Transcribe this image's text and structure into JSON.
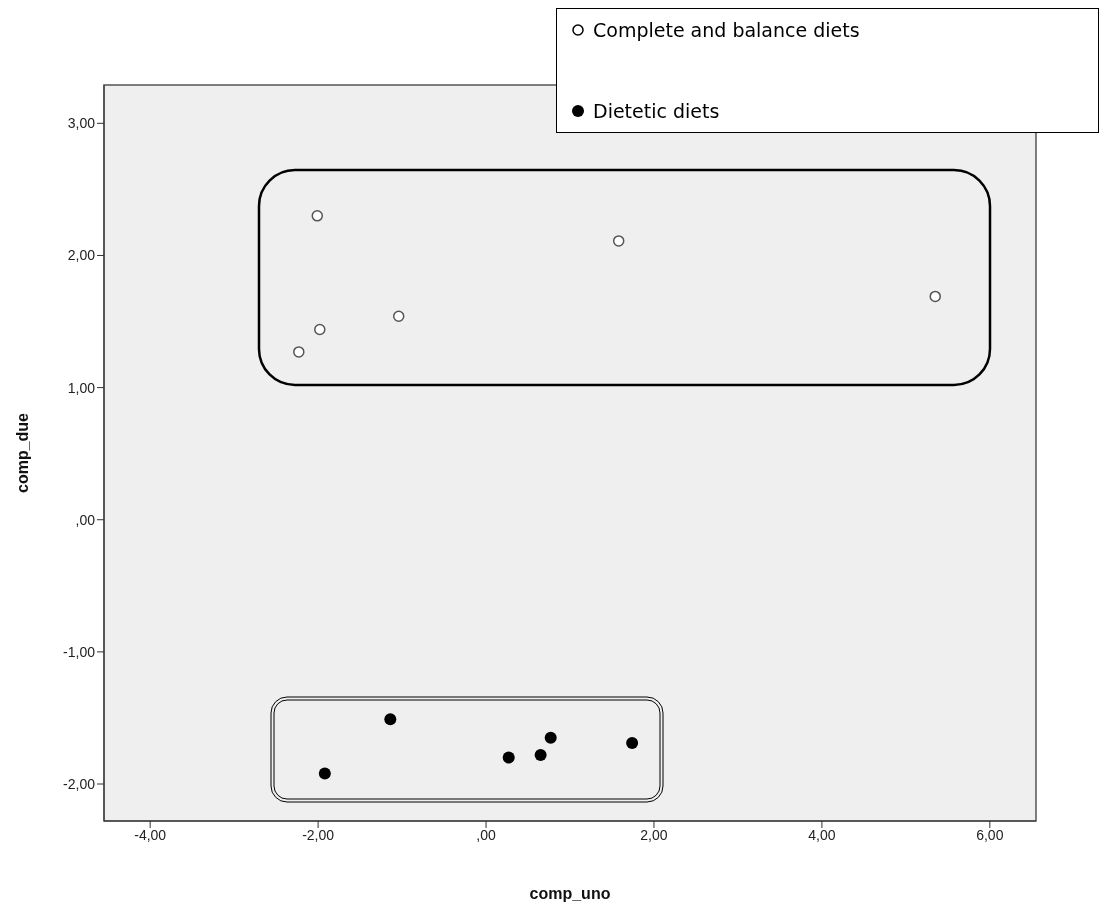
{
  "chart_data": {
    "type": "scatter",
    "xlabel": "comp_uno",
    "ylabel": "comp_due",
    "xlim": [
      -4.55,
      6.55
    ],
    "ylim": [
      -2.28,
      3.29
    ],
    "xticks": [
      {
        "value": -4,
        "label": "-4,00"
      },
      {
        "value": -2,
        "label": "-2,00"
      },
      {
        "value": 0,
        "label": ",00"
      },
      {
        "value": 2,
        "label": "2,00"
      },
      {
        "value": 4,
        "label": "4,00"
      },
      {
        "value": 6,
        "label": "6,00"
      }
    ],
    "yticks": [
      {
        "value": -2,
        "label": "-2,00"
      },
      {
        "value": -1,
        "label": "-1,00"
      },
      {
        "value": 0,
        "label": ",00"
      },
      {
        "value": 1,
        "label": "1,00"
      },
      {
        "value": 2,
        "label": "2,00"
      },
      {
        "value": 3,
        "label": "3,00"
      }
    ],
    "grid": false,
    "legend": "top right",
    "marker": "circle",
    "series": [
      {
        "name": "Complete and balance diets",
        "color": "#555555",
        "x": [
          -2.01,
          -2.23,
          -1.98,
          -1.04,
          1.58,
          5.35
        ],
        "values": [
          2.3,
          1.27,
          1.44,
          1.54,
          2.11,
          1.69
        ]
      },
      {
        "name": "Dietetic diets",
        "color": "#000000",
        "x": [
          -1.92,
          -1.14,
          0.27,
          0.65,
          0.77,
          1.74
        ],
        "values": [
          -1.92,
          -1.51,
          -1.8,
          -1.78,
          -1.65,
          -1.69
        ]
      }
    ]
  }
}
